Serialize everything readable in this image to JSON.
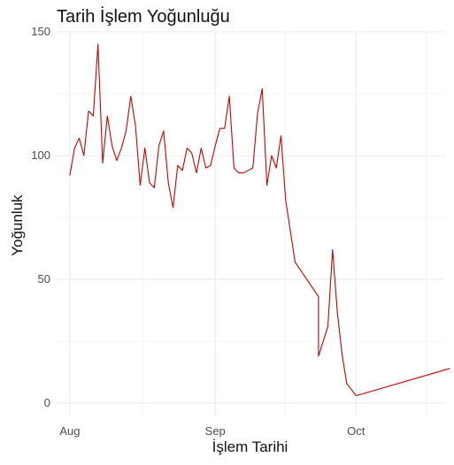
{
  "chart_data": {
    "type": "line",
    "title": "Tarih İşlem Yoğunluğu",
    "xlabel": "İşlem Tarihi",
    "ylabel": "Yoğunluk",
    "ylim": [
      -5,
      150
    ],
    "yticks": [
      0,
      50,
      100,
      150
    ],
    "xlim": [
      "2024-07-29",
      "2024-10-20"
    ],
    "xticks": [
      {
        "date": "2024-08-01",
        "label": "Aug"
      },
      {
        "date": "2024-09-01",
        "label": "Sep"
      },
      {
        "date": "2024-10-01",
        "label": "Oct"
      }
    ],
    "grid": true,
    "line_color": "#cc0000",
    "series": [
      {
        "x": [
          "2024-08-01",
          "2024-08-02",
          "2024-08-03",
          "2024-08-04",
          "2024-08-05",
          "2024-08-06",
          "2024-08-07",
          "2024-08-08",
          "2024-08-09",
          "2024-08-10",
          "2024-08-11",
          "2024-08-12",
          "2024-08-13",
          "2024-08-14",
          "2024-08-15",
          "2024-08-16",
          "2024-08-17",
          "2024-08-18",
          "2024-08-19",
          "2024-08-20",
          "2024-08-21",
          "2024-08-22",
          "2024-08-23",
          "2024-08-24",
          "2024-08-25",
          "2024-08-26",
          "2024-08-27",
          "2024-08-28",
          "2024-08-29",
          "2024-08-30",
          "2024-08-31",
          "2024-09-01",
          "2024-09-02",
          "2024-09-03",
          "2024-09-04",
          "2024-09-05",
          "2024-09-06",
          "2024-09-07",
          "2024-09-08",
          "2024-09-09",
          "2024-09-10",
          "2024-09-11",
          "2024-09-12",
          "2024-09-13",
          "2024-09-14",
          "2024-09-15",
          "2024-09-16",
          "2024-09-18",
          "2024-09-23",
          "2024-09-23",
          "2024-09-25",
          "2024-09-26",
          "2024-09-27",
          "2024-09-28",
          "2024-09-29",
          "2024-10-01",
          "2024-10-21"
        ],
        "values": [
          92,
          103,
          107,
          100,
          118,
          116,
          145,
          97,
          116,
          104,
          98,
          103,
          110,
          124,
          112,
          88,
          103,
          89,
          87,
          104,
          110,
          89,
          79,
          96,
          94,
          103,
          101,
          93,
          103,
          95,
          96,
          104,
          111,
          111,
          124,
          95,
          93,
          93,
          94,
          95,
          117,
          127,
          88,
          100,
          95,
          108,
          82,
          57,
          43,
          19,
          31,
          62,
          37,
          20,
          8,
          3,
          14
        ]
      }
    ]
  }
}
